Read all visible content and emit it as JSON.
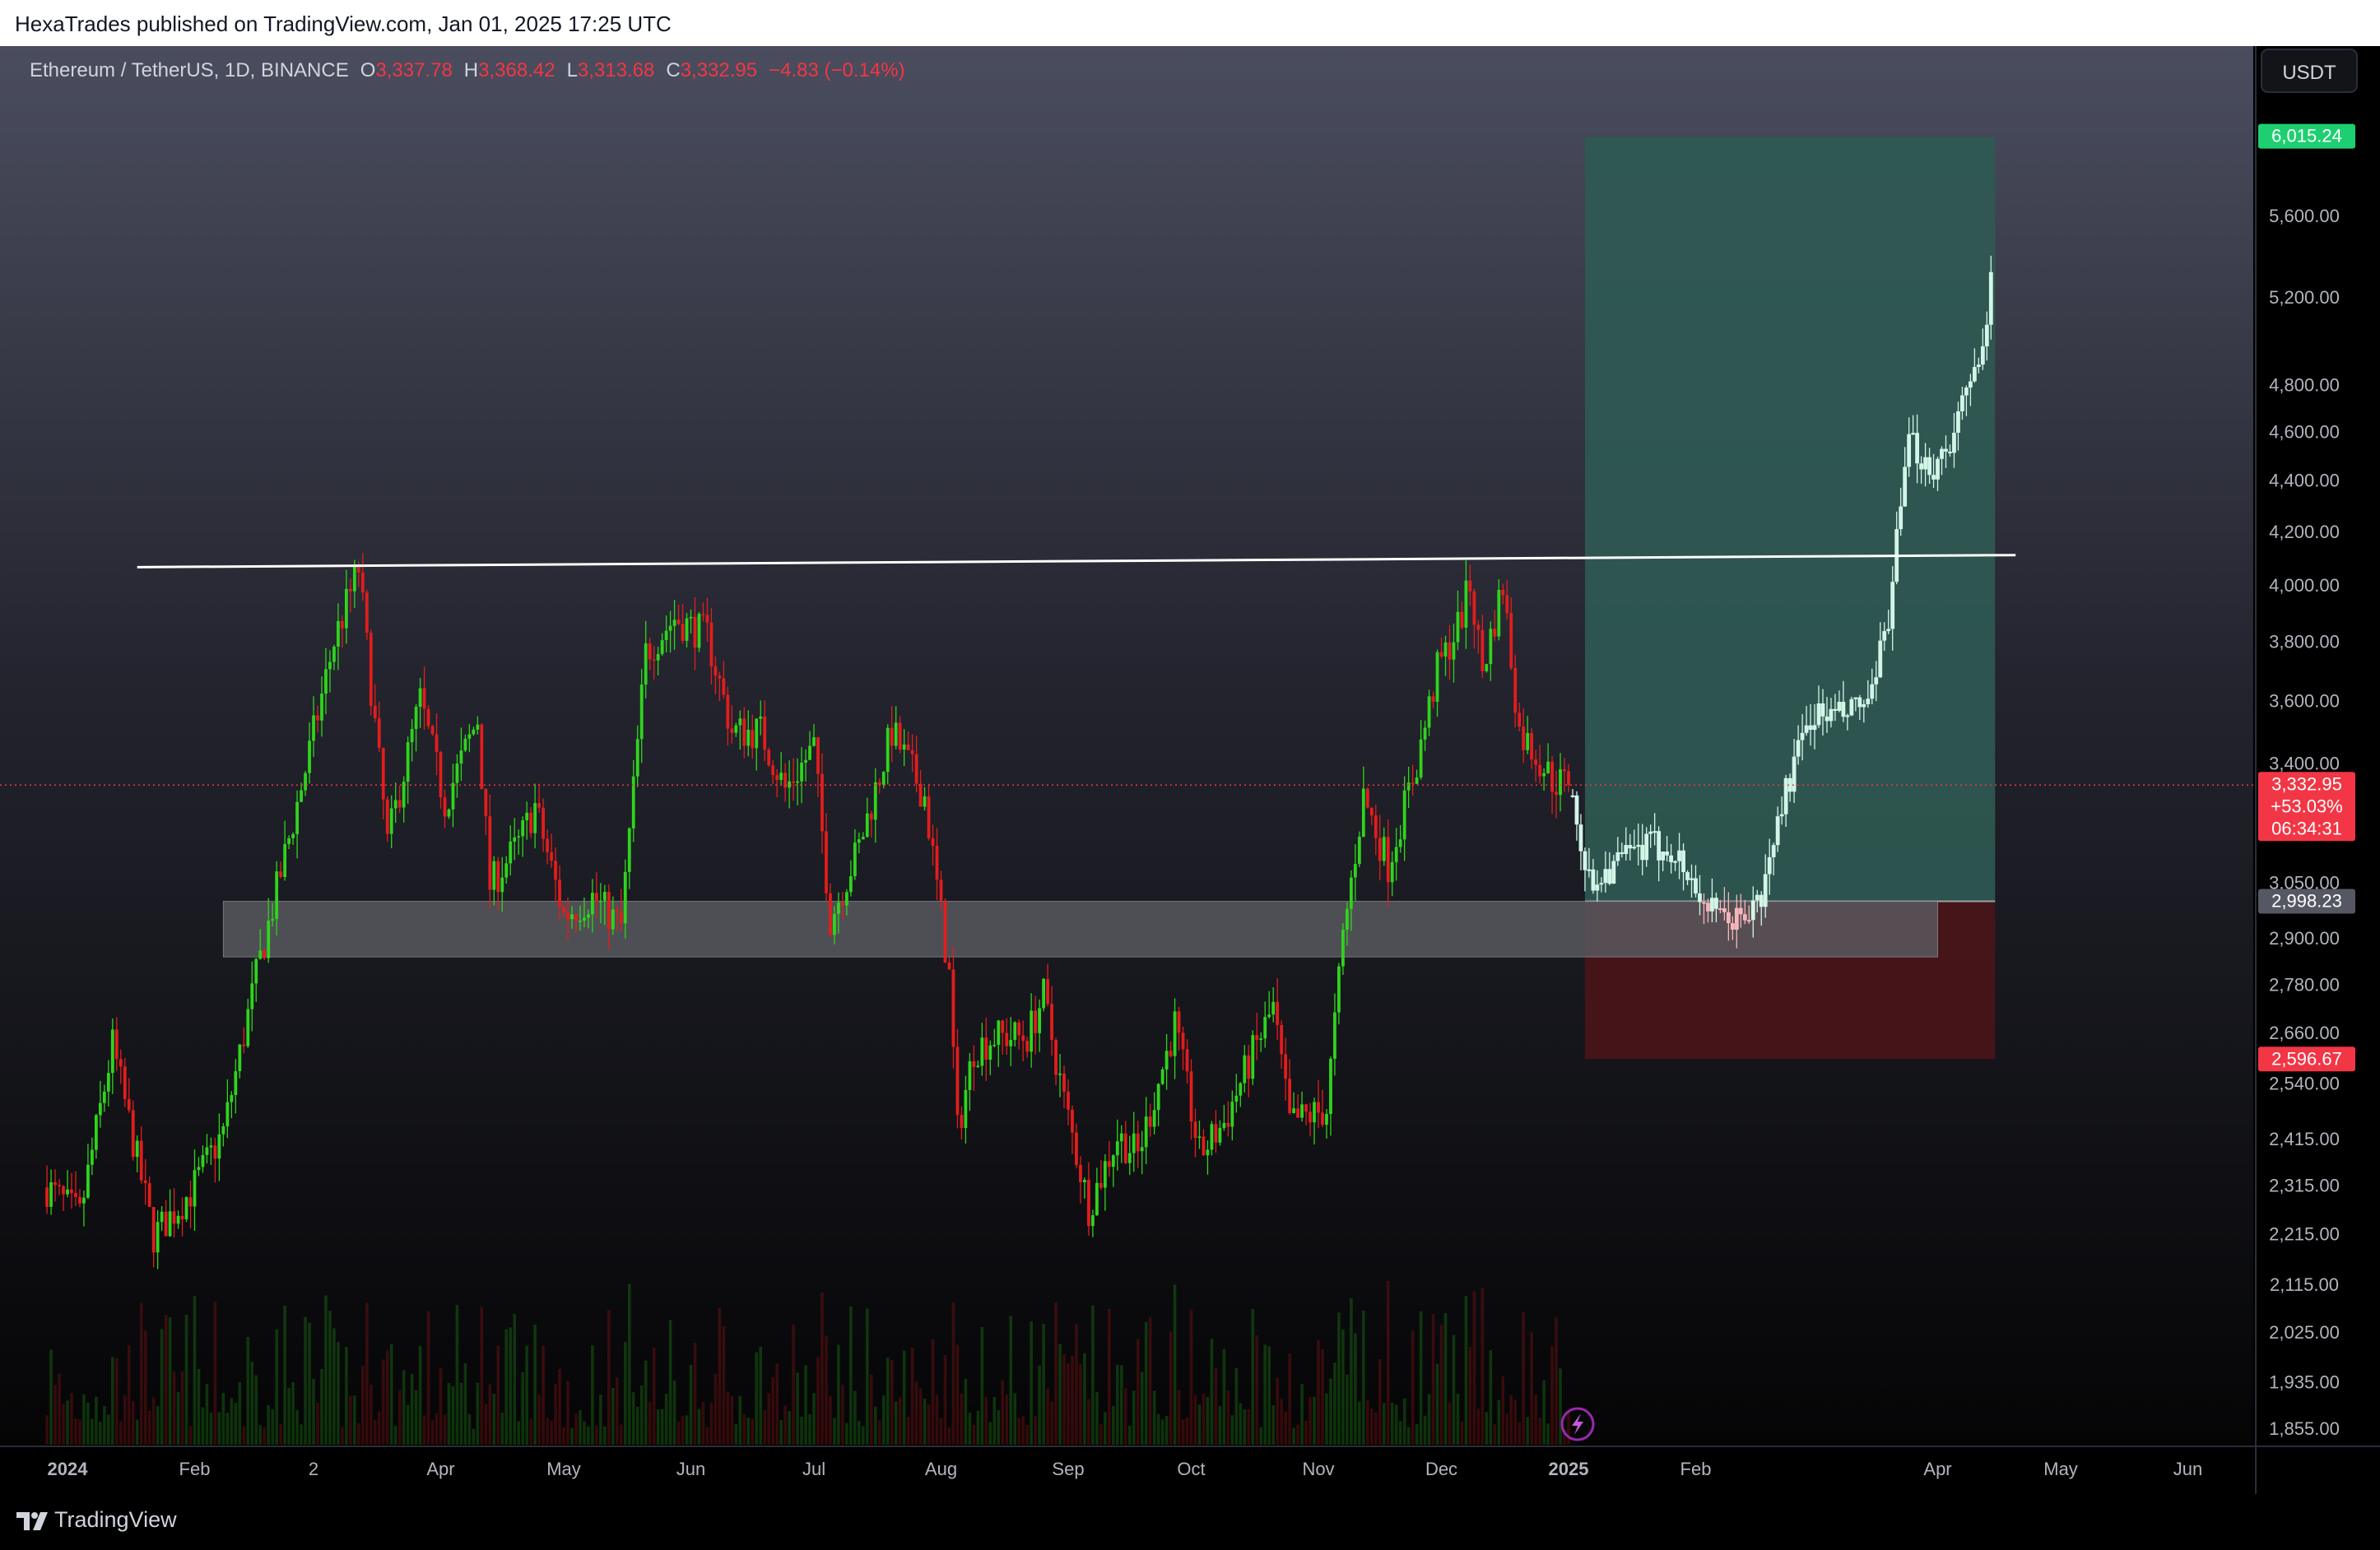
{
  "page": {
    "publish_line": "HexaTrades published on TradingView.com, Jan 01, 2025 17:25 UTC",
    "brand": "TradingView"
  },
  "symbol": {
    "name": "Ethereum / TetherUS, 1D, BINANCE",
    "o_label": "O",
    "o": "3,337.78",
    "h_label": "H",
    "h": "3,368.42",
    "l_label": "L",
    "l": "3,313.68",
    "c_label": "C",
    "c": "3,332.95",
    "change": "−4.83 (−0.14%)",
    "currency_button": "USDT"
  },
  "colors": {
    "up": "#2fd41c",
    "down": "#e21d1d",
    "projection": "#d2f5e8",
    "projection_loss": "#f5b6bb",
    "target_zone": "#2f5a52",
    "stop_zone": "#4a1519",
    "support_zone": "#5a5b60",
    "resistance": "#ffffff",
    "badge_green": "#1ecf71",
    "badge_red": "#f23645",
    "badge_gray": "#555862"
  },
  "price_badges": {
    "target": "6,015.24",
    "current_price": "3,332.95",
    "current_pct": "+53.03%",
    "countdown": "06:34:31",
    "entry": "2,998.23",
    "stop": "2,596.67"
  },
  "chart_data": {
    "type": "candlestick",
    "title": "Ethereum / TetherUS, 1D, BINANCE",
    "scale": "log",
    "y_ticks": [
      1855,
      1935,
      2025,
      2115,
      2215,
      2315,
      2415,
      2540,
      2660,
      2780,
      2900,
      3050,
      3400,
      3600,
      3800,
      4000,
      4200,
      4400,
      4600,
      4800,
      5200,
      5600
    ],
    "y_tick_labels": [
      "1,855.00",
      "1,935.00",
      "2,025.00",
      "2,115.00",
      "2,215.00",
      "2,315.00",
      "2,415.00",
      "2,540.00",
      "2,660.00",
      "2,780.00",
      "2,900.00",
      "3,050.00",
      "3,400.00",
      "3,600.00",
      "3,800.00",
      "4,000.00",
      "4,200.00",
      "4,400.00",
      "4,600.00",
      "4,800.00",
      "5,200.00",
      "5,600.00"
    ],
    "x_ticks": [
      {
        "label": "2024",
        "date": "2024-01-01",
        "bold": true
      },
      {
        "label": "Feb",
        "date": "2024-02-01"
      },
      {
        "label": "2",
        "date": "2024-03-01"
      },
      {
        "label": "Apr",
        "date": "2024-04-01"
      },
      {
        "label": "May",
        "date": "2024-05-01"
      },
      {
        "label": "Jun",
        "date": "2024-06-01"
      },
      {
        "label": "Jul",
        "date": "2024-07-01"
      },
      {
        "label": "Aug",
        "date": "2024-08-01"
      },
      {
        "label": "Sep",
        "date": "2024-09-01"
      },
      {
        "label": "Oct",
        "date": "2024-10-01"
      },
      {
        "label": "Nov",
        "date": "2024-11-01"
      },
      {
        "label": "Dec",
        "date": "2024-12-01"
      },
      {
        "label": "2025",
        "date": "2025-01-01",
        "bold": true
      },
      {
        "label": "Feb",
        "date": "2025-02-01"
      },
      {
        "label": "Apr",
        "date": "2025-04-01"
      },
      {
        "label": "May",
        "date": "2025-05-01"
      },
      {
        "label": "Jun",
        "date": "2025-06-01"
      }
    ],
    "closing_path": [
      [
        "2023-12-27",
        2310
      ],
      [
        "2024-01-04",
        2250
      ],
      [
        "2024-01-12",
        2630
      ],
      [
        "2024-01-22",
        2210
      ],
      [
        "2024-01-31",
        2300
      ],
      [
        "2024-02-08",
        2430
      ],
      [
        "2024-02-16",
        2800
      ],
      [
        "2024-02-28",
        3380
      ],
      [
        "2024-03-06",
        3800
      ],
      [
        "2024-03-12",
        4060
      ],
      [
        "2024-03-19",
        3160
      ],
      [
        "2024-03-27",
        3600
      ],
      [
        "2024-04-02",
        3280
      ],
      [
        "2024-04-10",
        3540
      ],
      [
        "2024-04-13",
        3040
      ],
      [
        "2024-04-20",
        3160
      ],
      [
        "2024-04-24",
        3270
      ],
      [
        "2024-05-01",
        2960
      ],
      [
        "2024-05-08",
        3010
      ],
      [
        "2024-05-15",
        2930
      ],
      [
        "2024-05-21",
        3760
      ],
      [
        "2024-05-28",
        3880
      ],
      [
        "2024-06-05",
        3820
      ],
      [
        "2024-06-11",
        3500
      ],
      [
        "2024-06-18",
        3500
      ],
      [
        "2024-06-24",
        3320
      ],
      [
        "2024-07-01",
        3450
      ],
      [
        "2024-07-05",
        2950
      ],
      [
        "2024-07-12",
        3150
      ],
      [
        "2024-07-20",
        3500
      ],
      [
        "2024-07-28",
        3300
      ],
      [
        "2024-08-03",
        2800
      ],
      [
        "2024-08-05",
        2430
      ],
      [
        "2024-08-09",
        2620
      ],
      [
        "2024-08-14",
        2650
      ],
      [
        "2024-08-22",
        2650
      ],
      [
        "2024-08-26",
        2750
      ],
      [
        "2024-08-31",
        2500
      ],
      [
        "2024-09-06",
        2270
      ],
      [
        "2024-09-13",
        2420
      ],
      [
        "2024-09-18",
        2380
      ],
      [
        "2024-09-27",
        2680
      ],
      [
        "2024-10-03",
        2380
      ],
      [
        "2024-10-09",
        2450
      ],
      [
        "2024-10-16",
        2610
      ],
      [
        "2024-10-21",
        2720
      ],
      [
        "2024-10-25",
        2450
      ],
      [
        "2024-11-03",
        2480
      ],
      [
        "2024-11-07",
        2900
      ],
      [
        "2024-11-12",
        3300
      ],
      [
        "2024-11-18",
        3100
      ],
      [
        "2024-11-25",
        3400
      ],
      [
        "2024-11-30",
        3700
      ],
      [
        "2024-12-05",
        3850
      ],
      [
        "2024-12-08",
        4000
      ],
      [
        "2024-12-11",
        3700
      ],
      [
        "2024-12-16",
        4000
      ],
      [
        "2024-12-20",
        3500
      ],
      [
        "2024-12-24",
        3430
      ],
      [
        "2024-12-28",
        3350
      ],
      [
        "2025-01-01",
        3333
      ]
    ],
    "projection_path": [
      [
        "2025-01-02",
        3300
      ],
      [
        "2025-01-06",
        3050
      ],
      [
        "2025-01-12",
        3100
      ],
      [
        "2025-01-20",
        3150
      ],
      [
        "2025-01-26",
        3150
      ],
      [
        "2025-01-31",
        3050
      ],
      [
        "2025-02-06",
        2950
      ],
      [
        "2025-02-12",
        2950
      ],
      [
        "2025-02-17",
        3000
      ],
      [
        "2025-02-22",
        3280
      ],
      [
        "2025-03-01",
        3550
      ],
      [
        "2025-03-09",
        3550
      ],
      [
        "2025-03-16",
        3600
      ],
      [
        "2025-03-20",
        3900
      ],
      [
        "2025-03-25",
        4550
      ],
      [
        "2025-03-31",
        4450
      ],
      [
        "2025-04-05",
        4600
      ],
      [
        "2025-04-10",
        4850
      ],
      [
        "2025-04-14",
        5250
      ]
    ],
    "resistance_line": {
      "from": {
        "date": "2024-01-18",
        "price": 4065
      },
      "to": {
        "date": "2025-04-20",
        "price": 4110
      }
    },
    "support_zone": {
      "from_date": "2024-02-08",
      "to_date": "2025-04-01",
      "top": 2998,
      "bottom": 2850
    },
    "long_position": {
      "entry_date": "2025-01-05",
      "exit_date": "2025-04-15",
      "entry": 2998.23,
      "target": 6015.24,
      "stop": 2596.67,
      "ratio_pct": "+53.03%"
    },
    "last_price": 3332.95
  }
}
